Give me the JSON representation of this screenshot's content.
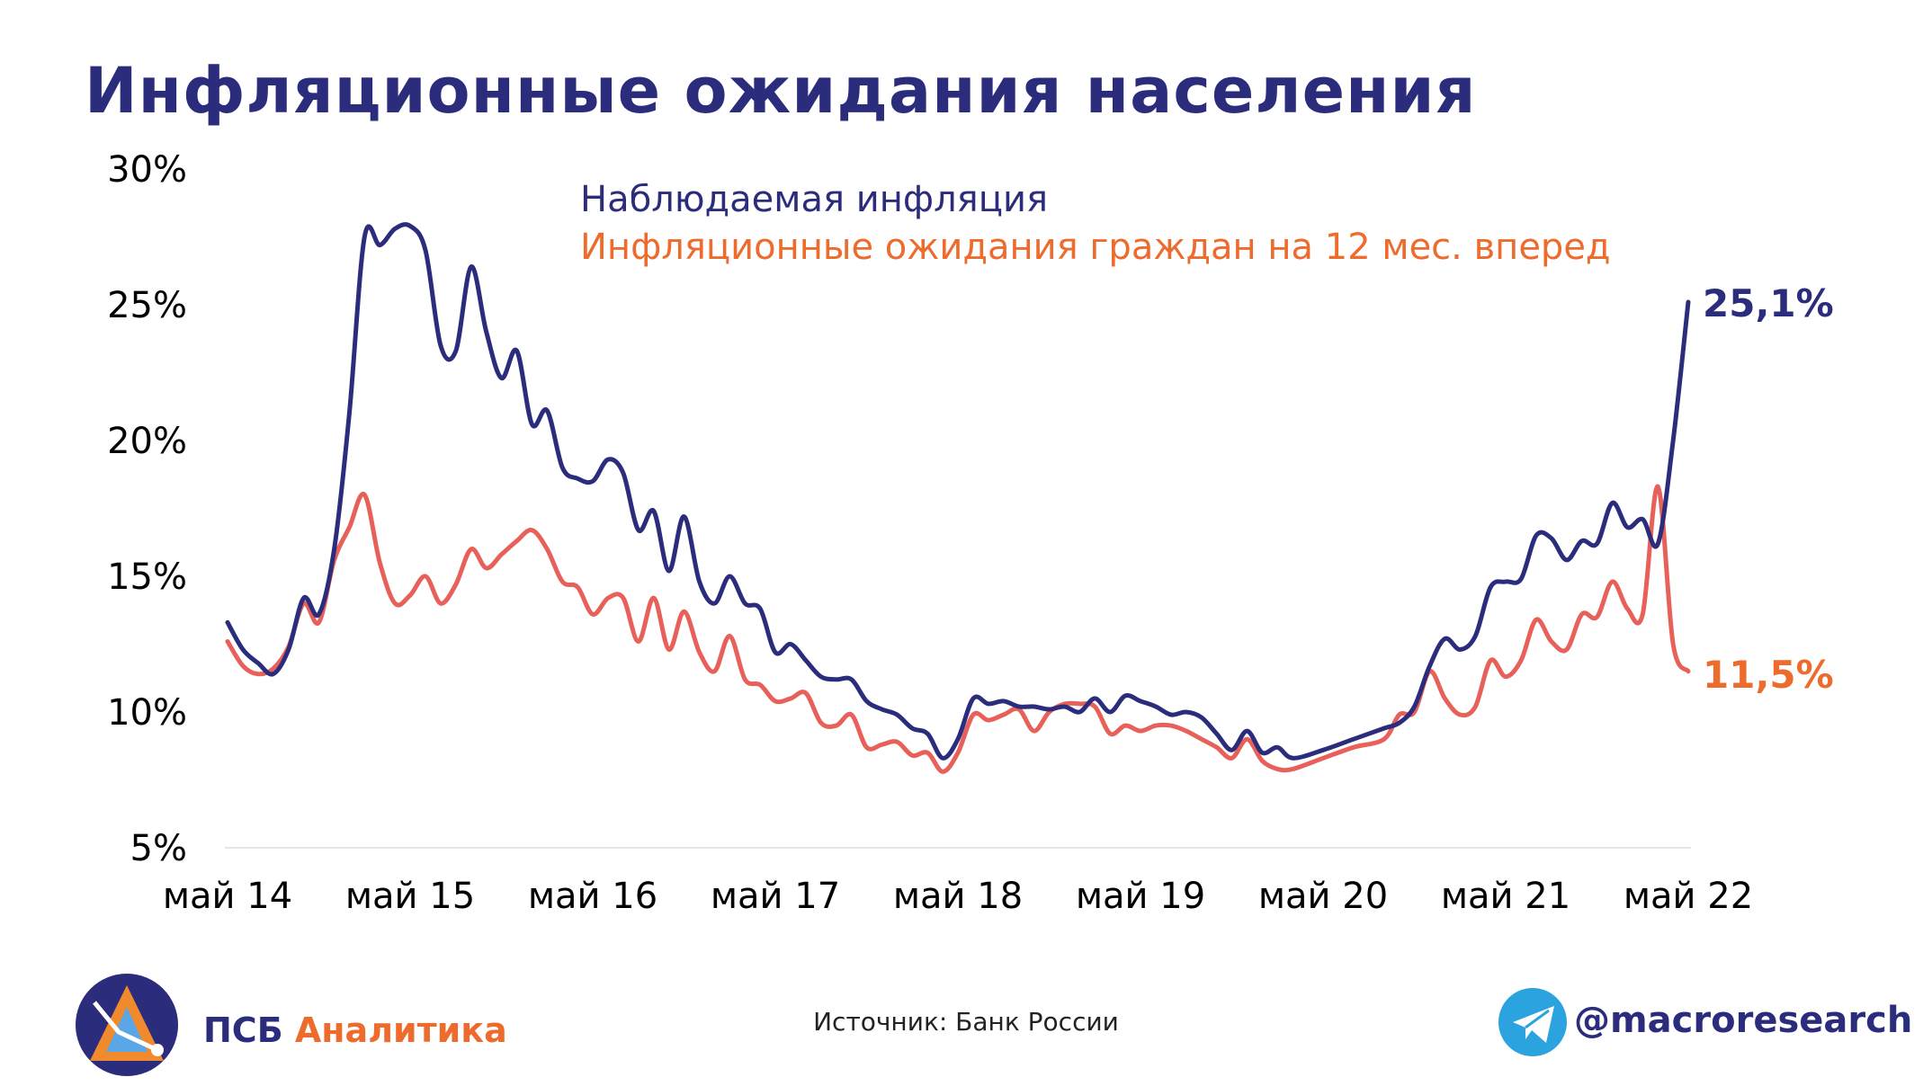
{
  "header": {
    "title": "Инфляционные ожидания населения"
  },
  "footer": {
    "brand_part1": "ПСБ",
    "brand_part2": "Аналитика",
    "source": "Источник: Банк России",
    "telegram": "@macroresearch"
  },
  "colors": {
    "navy": "#2b2d7c",
    "orange": "#ee6b2e",
    "red_line": "#e8605a",
    "telegram": "#2aa3df"
  },
  "icons": {
    "logo": "psb-logo-icon",
    "telegram": "telegram-icon"
  },
  "chart_data": {
    "type": "line",
    "title": "",
    "xlabel": "",
    "ylabel": "",
    "ylim": [
      5,
      30
    ],
    "y_ticks": [
      5,
      10,
      15,
      20,
      25,
      30
    ],
    "y_tick_labels": [
      "5%",
      "10%",
      "15%",
      "20%",
      "25%",
      "30%"
    ],
    "x_range": [
      2014.333,
      2022.5
    ],
    "x_ticks": [
      2014.333,
      2015.333,
      2016.333,
      2017.333,
      2018.333,
      2019.333,
      2020.333,
      2021.333,
      2022.333
    ],
    "x_tick_labels": [
      "май 14",
      "май 15",
      "май 16",
      "май 17",
      "май 18",
      "май 19",
      "май 20",
      "май 21",
      "май 22"
    ],
    "grid": false,
    "legend_position": "top-center",
    "series": [
      {
        "name": "Наблюдаемая инфляция",
        "color": "#2b2d7c",
        "end_label": "25,1%",
        "points": [
          [
            2014.333,
            13.3
          ],
          [
            2014.417,
            12.3
          ],
          [
            2014.5,
            11.8
          ],
          [
            2014.583,
            11.4
          ],
          [
            2014.667,
            12.3
          ],
          [
            2014.75,
            14.2
          ],
          [
            2014.833,
            13.6
          ],
          [
            2014.917,
            16.0
          ],
          [
            2015.0,
            21.0
          ],
          [
            2015.083,
            27.5
          ],
          [
            2015.167,
            27.2
          ],
          [
            2015.25,
            27.8
          ],
          [
            2015.333,
            27.9
          ],
          [
            2015.417,
            27.0
          ],
          [
            2015.5,
            23.5
          ],
          [
            2015.583,
            23.3
          ],
          [
            2015.667,
            26.4
          ],
          [
            2015.75,
            24.0
          ],
          [
            2015.833,
            22.3
          ],
          [
            2015.917,
            23.3
          ],
          [
            2016.0,
            20.6
          ],
          [
            2016.083,
            21.1
          ],
          [
            2016.167,
            19.0
          ],
          [
            2016.25,
            18.6
          ],
          [
            2016.333,
            18.5
          ],
          [
            2016.417,
            19.3
          ],
          [
            2016.5,
            18.8
          ],
          [
            2016.583,
            16.7
          ],
          [
            2016.667,
            17.4
          ],
          [
            2016.75,
            15.2
          ],
          [
            2016.833,
            17.2
          ],
          [
            2016.917,
            14.8
          ],
          [
            2017.0,
            14.0
          ],
          [
            2017.083,
            15.0
          ],
          [
            2017.167,
            14.0
          ],
          [
            2017.25,
            13.8
          ],
          [
            2017.333,
            12.2
          ],
          [
            2017.417,
            12.5
          ],
          [
            2017.5,
            11.9
          ],
          [
            2017.583,
            11.3
          ],
          [
            2017.667,
            11.2
          ],
          [
            2017.75,
            11.2
          ],
          [
            2017.833,
            10.4
          ],
          [
            2017.917,
            10.1
          ],
          [
            2018.0,
            9.9
          ],
          [
            2018.083,
            9.4
          ],
          [
            2018.167,
            9.2
          ],
          [
            2018.25,
            8.3
          ],
          [
            2018.333,
            9.0
          ],
          [
            2018.417,
            10.5
          ],
          [
            2018.5,
            10.3
          ],
          [
            2018.583,
            10.4
          ],
          [
            2018.667,
            10.2
          ],
          [
            2018.75,
            10.2
          ],
          [
            2018.833,
            10.1
          ],
          [
            2018.917,
            10.2
          ],
          [
            2019.0,
            10.0
          ],
          [
            2019.083,
            10.5
          ],
          [
            2019.167,
            10.0
          ],
          [
            2019.25,
            10.6
          ],
          [
            2019.333,
            10.4
          ],
          [
            2019.417,
            10.2
          ],
          [
            2019.5,
            9.9
          ],
          [
            2019.583,
            10.0
          ],
          [
            2019.667,
            9.8
          ],
          [
            2019.75,
            9.2
          ],
          [
            2019.833,
            8.6
          ],
          [
            2019.917,
            9.3
          ],
          [
            2020.0,
            8.5
          ],
          [
            2020.083,
            8.7
          ],
          [
            2020.167,
            8.3
          ],
          [
            2020.333,
            8.6
          ],
          [
            2020.5,
            9.0
          ],
          [
            2020.667,
            9.4
          ],
          [
            2020.75,
            9.6
          ],
          [
            2020.833,
            10.2
          ],
          [
            2020.917,
            11.7
          ],
          [
            2021.0,
            12.7
          ],
          [
            2021.083,
            12.3
          ],
          [
            2021.167,
            12.8
          ],
          [
            2021.25,
            14.6
          ],
          [
            2021.333,
            14.8
          ],
          [
            2021.417,
            14.9
          ],
          [
            2021.5,
            16.5
          ],
          [
            2021.583,
            16.4
          ],
          [
            2021.667,
            15.6
          ],
          [
            2021.75,
            16.3
          ],
          [
            2021.833,
            16.2
          ],
          [
            2021.917,
            17.7
          ],
          [
            2022.0,
            16.8
          ],
          [
            2022.083,
            17.1
          ],
          [
            2022.167,
            16.2
          ],
          [
            2022.25,
            20.0
          ],
          [
            2022.333,
            25.1
          ]
        ]
      },
      {
        "name": "Инфляционные ожидания граждан на 12 мес. вперед",
        "color": "#e8605a",
        "end_label": "11,5%",
        "points": [
          [
            2014.333,
            12.6
          ],
          [
            2014.417,
            11.7
          ],
          [
            2014.5,
            11.4
          ],
          [
            2014.583,
            11.6
          ],
          [
            2014.667,
            12.4
          ],
          [
            2014.75,
            14.0
          ],
          [
            2014.833,
            13.3
          ],
          [
            2014.917,
            15.6
          ],
          [
            2015.0,
            16.8
          ],
          [
            2015.083,
            18.0
          ],
          [
            2015.167,
            15.5
          ],
          [
            2015.25,
            14.0
          ],
          [
            2015.333,
            14.3
          ],
          [
            2015.417,
            15.0
          ],
          [
            2015.5,
            14.0
          ],
          [
            2015.583,
            14.7
          ],
          [
            2015.667,
            16.0
          ],
          [
            2015.75,
            15.3
          ],
          [
            2015.833,
            15.8
          ],
          [
            2015.917,
            16.3
          ],
          [
            2016.0,
            16.7
          ],
          [
            2016.083,
            16.0
          ],
          [
            2016.167,
            14.8
          ],
          [
            2016.25,
            14.6
          ],
          [
            2016.333,
            13.6
          ],
          [
            2016.417,
            14.2
          ],
          [
            2016.5,
            14.2
          ],
          [
            2016.583,
            12.6
          ],
          [
            2016.667,
            14.2
          ],
          [
            2016.75,
            12.3
          ],
          [
            2016.833,
            13.7
          ],
          [
            2016.917,
            12.2
          ],
          [
            2017.0,
            11.5
          ],
          [
            2017.083,
            12.8
          ],
          [
            2017.167,
            11.2
          ],
          [
            2017.25,
            11.0
          ],
          [
            2017.333,
            10.4
          ],
          [
            2017.417,
            10.5
          ],
          [
            2017.5,
            10.7
          ],
          [
            2017.583,
            9.6
          ],
          [
            2017.667,
            9.5
          ],
          [
            2017.75,
            9.9
          ],
          [
            2017.833,
            8.7
          ],
          [
            2017.917,
            8.8
          ],
          [
            2018.0,
            8.9
          ],
          [
            2018.083,
            8.4
          ],
          [
            2018.167,
            8.5
          ],
          [
            2018.25,
            7.8
          ],
          [
            2018.333,
            8.5
          ],
          [
            2018.417,
            9.9
          ],
          [
            2018.5,
            9.7
          ],
          [
            2018.583,
            9.9
          ],
          [
            2018.667,
            10.1
          ],
          [
            2018.75,
            9.3
          ],
          [
            2018.833,
            10.0
          ],
          [
            2018.917,
            10.3
          ],
          [
            2019.0,
            10.3
          ],
          [
            2019.083,
            10.2
          ],
          [
            2019.167,
            9.2
          ],
          [
            2019.25,
            9.5
          ],
          [
            2019.333,
            9.3
          ],
          [
            2019.417,
            9.5
          ],
          [
            2019.5,
            9.5
          ],
          [
            2019.583,
            9.3
          ],
          [
            2019.667,
            9.0
          ],
          [
            2019.75,
            8.7
          ],
          [
            2019.833,
            8.3
          ],
          [
            2019.917,
            9.0
          ],
          [
            2020.0,
            8.2
          ],
          [
            2020.083,
            7.9
          ],
          [
            2020.167,
            7.9
          ],
          [
            2020.333,
            8.3
          ],
          [
            2020.5,
            8.7
          ],
          [
            2020.667,
            9.0
          ],
          [
            2020.75,
            9.9
          ],
          [
            2020.833,
            10.0
          ],
          [
            2020.917,
            11.5
          ],
          [
            2021.0,
            10.5
          ],
          [
            2021.083,
            9.9
          ],
          [
            2021.167,
            10.2
          ],
          [
            2021.25,
            11.9
          ],
          [
            2021.333,
            11.3
          ],
          [
            2021.417,
            11.9
          ],
          [
            2021.5,
            13.4
          ],
          [
            2021.583,
            12.6
          ],
          [
            2021.667,
            12.3
          ],
          [
            2021.75,
            13.6
          ],
          [
            2021.833,
            13.5
          ],
          [
            2021.917,
            14.8
          ],
          [
            2022.0,
            13.8
          ],
          [
            2022.083,
            13.6
          ],
          [
            2022.167,
            18.3
          ],
          [
            2022.25,
            12.5
          ],
          [
            2022.333,
            11.5
          ]
        ]
      }
    ]
  }
}
